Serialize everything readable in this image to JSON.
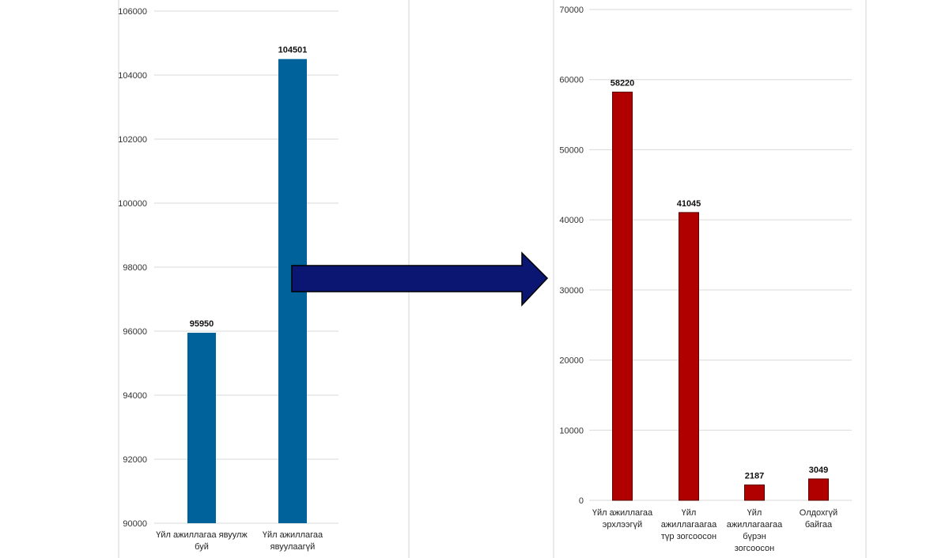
{
  "chart_data": [
    {
      "type": "bar",
      "title": "",
      "xlabel": "",
      "ylabel": "",
      "categories": [
        [
          "Үйл ажиллагаа явуулж",
          "буй"
        ],
        [
          "Үйл ажиллагаа",
          "явуулаагүй"
        ]
      ],
      "values": [
        95950,
        104501
      ],
      "data_labels": [
        "95950",
        "104501"
      ],
      "ylim": [
        90000,
        106000
      ],
      "yticks": [
        90000,
        92000,
        94000,
        96000,
        98000,
        100000,
        102000,
        104000,
        106000
      ],
      "grid": true,
      "color": "#00629B"
    },
    {
      "type": "bar",
      "title": "",
      "xlabel": "",
      "ylabel": "",
      "categories": [
        [
          "Үйл ажиллагаа",
          "эрхлээгүй"
        ],
        [
          "Үйл",
          "ажиллагаагаа",
          "түр зогсоосон"
        ],
        [
          "Үйл",
          "ажиллагаагаа",
          "бүрэн",
          "зогсоосон"
        ],
        [
          "Олдохгүй",
          "байгаа"
        ]
      ],
      "values": [
        58220,
        41045,
        2187,
        3049
      ],
      "data_labels": [
        "58220",
        "41045",
        "2187",
        "3049"
      ],
      "ylim": [
        0,
        70000
      ],
      "yticks": [
        0,
        10000,
        20000,
        30000,
        40000,
        50000,
        60000,
        70000
      ],
      "grid": true,
      "color": "#B00000"
    }
  ],
  "arrow": {
    "color": "#0A1672",
    "direction": "right"
  }
}
